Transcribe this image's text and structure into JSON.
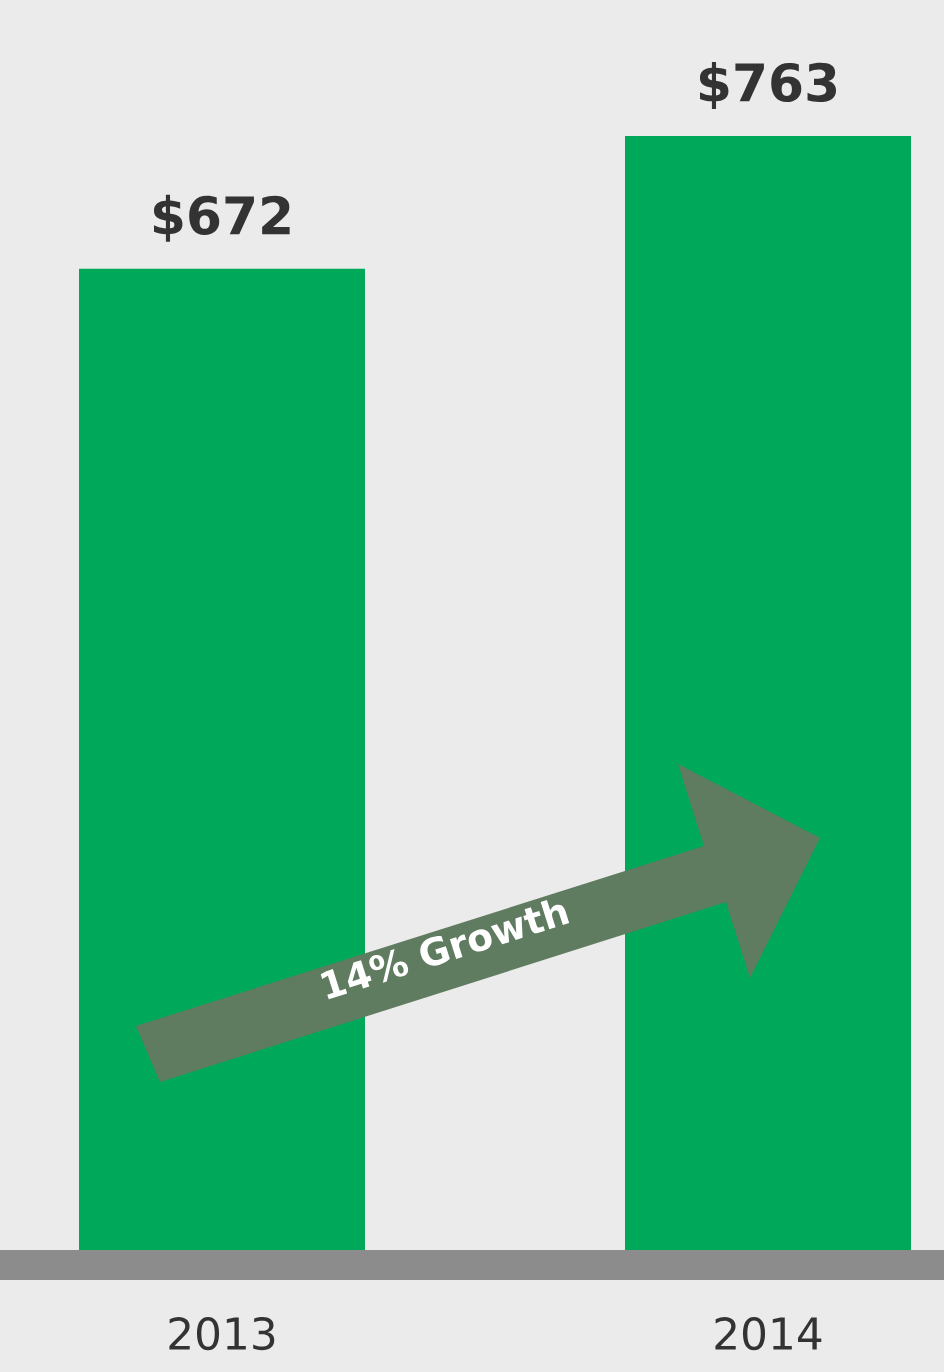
{
  "chart_data": {
    "type": "bar",
    "categories": [
      "2013",
      "2014"
    ],
    "values": [
      672,
      763
    ],
    "color": "#00a859",
    "data_labels": true,
    "value_labels": [
      "$672",
      "$763"
    ],
    "annotations": [
      "14% Growth"
    ]
  }
}
